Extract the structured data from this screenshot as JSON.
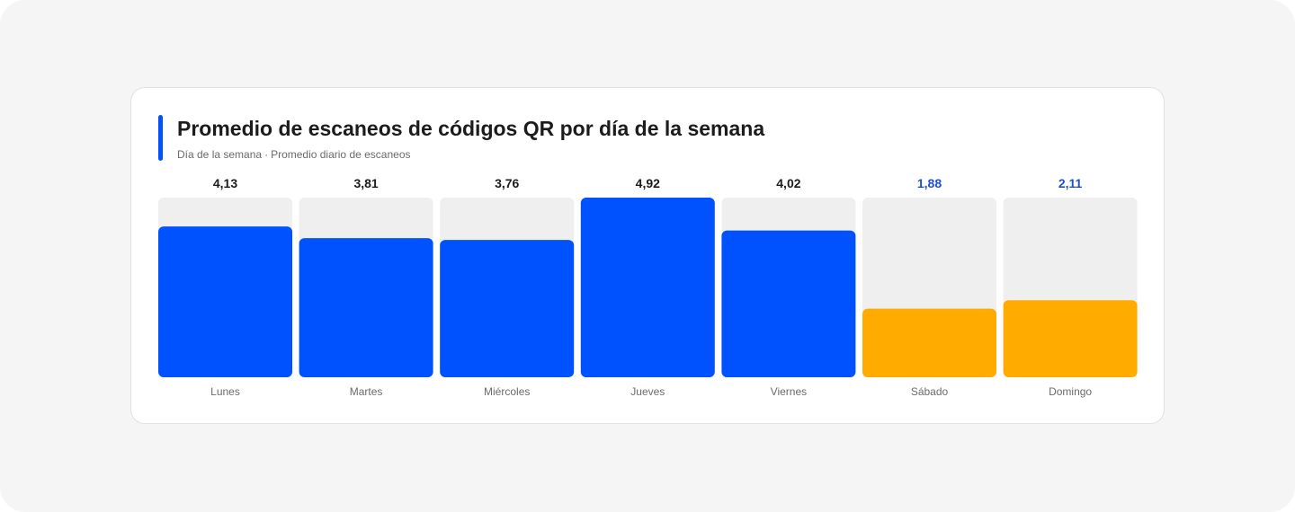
{
  "chart_data": {
    "type": "bar",
    "title": "Promedio de escaneos de códigos QR por día de la semana",
    "xlabel": "Día de la semana",
    "ylabel": "Promedio diario de escaneos",
    "categories": [
      "Lunes",
      "Martes",
      "Miércoles",
      "Jueves",
      "Viernes",
      "Sábado",
      "Domingo"
    ],
    "values": [
      4.13,
      3.81,
      3.76,
      4.92,
      4.02,
      1.88,
      2.11
    ],
    "value_labels": [
      "4,13",
      "3,81",
      "3,76",
      "4,92",
      "4,02",
      "1,88",
      "2,11"
    ],
    "ylim": [
      0,
      4.92
    ],
    "grid": false,
    "legend": "none",
    "highlight_categories": [
      "Sábado",
      "Domingo"
    ]
  },
  "colors": {
    "weekday_bar": "#0052ff",
    "weekend_bar": "#ffab00",
    "track": "#efefef",
    "accent": "#0052ff",
    "value_weekday": "#1c1c1c",
    "value_weekend": "#1f4fd1",
    "category_text": "#6b6b6b"
  }
}
